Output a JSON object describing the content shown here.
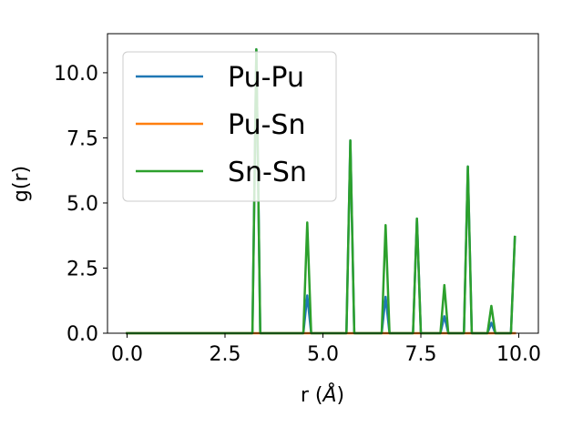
{
  "chart_data": {
    "type": "line",
    "xlabel_text": "r (",
    "xlabel_unit": "Å",
    "xlabel_close": ")",
    "ylabel": "g(r)",
    "xlim": [
      -0.5,
      10.5
    ],
    "ylim": [
      0,
      11.5
    ],
    "xticks": [
      0.0,
      2.5,
      5.0,
      7.5,
      10.0
    ],
    "xtick_labels": [
      "0.0",
      "2.5",
      "5.0",
      "7.5",
      "10.0"
    ],
    "yticks": [
      0.0,
      2.5,
      5.0,
      7.5,
      10.0
    ],
    "ytick_labels": [
      "0.0",
      "2.5",
      "5.0",
      "7.5",
      "10.0"
    ],
    "grid": false,
    "legend_position": "top-left",
    "series": [
      {
        "name": "Pu-Pu",
        "color": "#1f77b4",
        "x": [
          0,
          3.2,
          3.3,
          3.4,
          4.5,
          4.6,
          4.7,
          5.6,
          5.7,
          5.8,
          6.5,
          6.6,
          6.7,
          7.3,
          7.4,
          7.5,
          8.0,
          8.1,
          8.2,
          8.6,
          8.7,
          8.8,
          9.2,
          9.3,
          9.4,
          9.8,
          9.9
        ],
        "y": [
          0,
          0,
          10.9,
          0,
          0,
          1.45,
          0,
          0,
          7.4,
          0,
          0,
          1.4,
          0,
          0,
          4.4,
          0,
          0,
          0.65,
          0,
          0,
          6.4,
          0,
          0,
          0.4,
          0,
          0,
          3.7
        ]
      },
      {
        "name": "Pu-Sn",
        "color": "#ff7f0e",
        "x": [
          0,
          9.9
        ],
        "y": [
          0,
          0
        ]
      },
      {
        "name": "Sn-Sn",
        "color": "#2ca02c",
        "x": [
          0,
          3.2,
          3.3,
          3.4,
          4.5,
          4.6,
          4.7,
          5.6,
          5.7,
          5.8,
          6.5,
          6.6,
          6.7,
          7.3,
          7.4,
          7.5,
          8.0,
          8.1,
          8.2,
          8.6,
          8.7,
          8.8,
          9.2,
          9.3,
          9.4,
          9.8,
          9.9
        ],
        "y": [
          0,
          0,
          10.9,
          0,
          0,
          4.25,
          0,
          0,
          7.4,
          0,
          0,
          4.15,
          0,
          0,
          4.4,
          0,
          0,
          1.85,
          0,
          0,
          6.4,
          0,
          0,
          1.05,
          0,
          0,
          3.7
        ]
      }
    ]
  }
}
